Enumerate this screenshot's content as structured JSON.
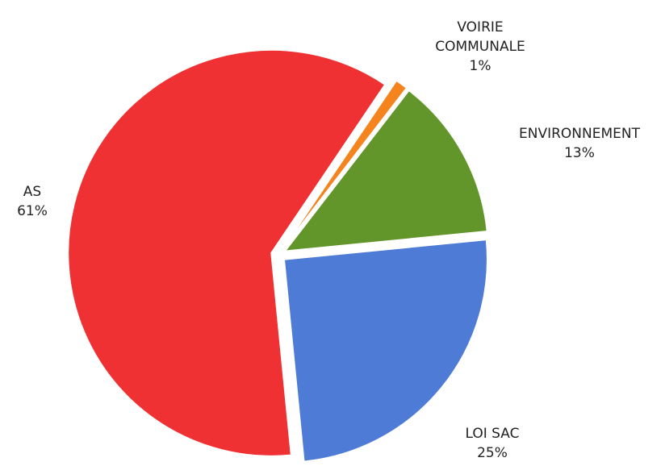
{
  "chart_data": {
    "type": "pie",
    "categories": [
      "VOIRIE COMMUNALE",
      "ENVIRONNEMENT",
      "LOI SAC",
      "AS"
    ],
    "values": [
      1,
      13,
      25,
      61
    ],
    "value_labels": [
      "1%",
      "13%",
      "25%",
      "61%"
    ],
    "colors": [
      "#f5841f",
      "#63962a",
      "#4d7bd6",
      "#ef3133"
    ]
  }
}
